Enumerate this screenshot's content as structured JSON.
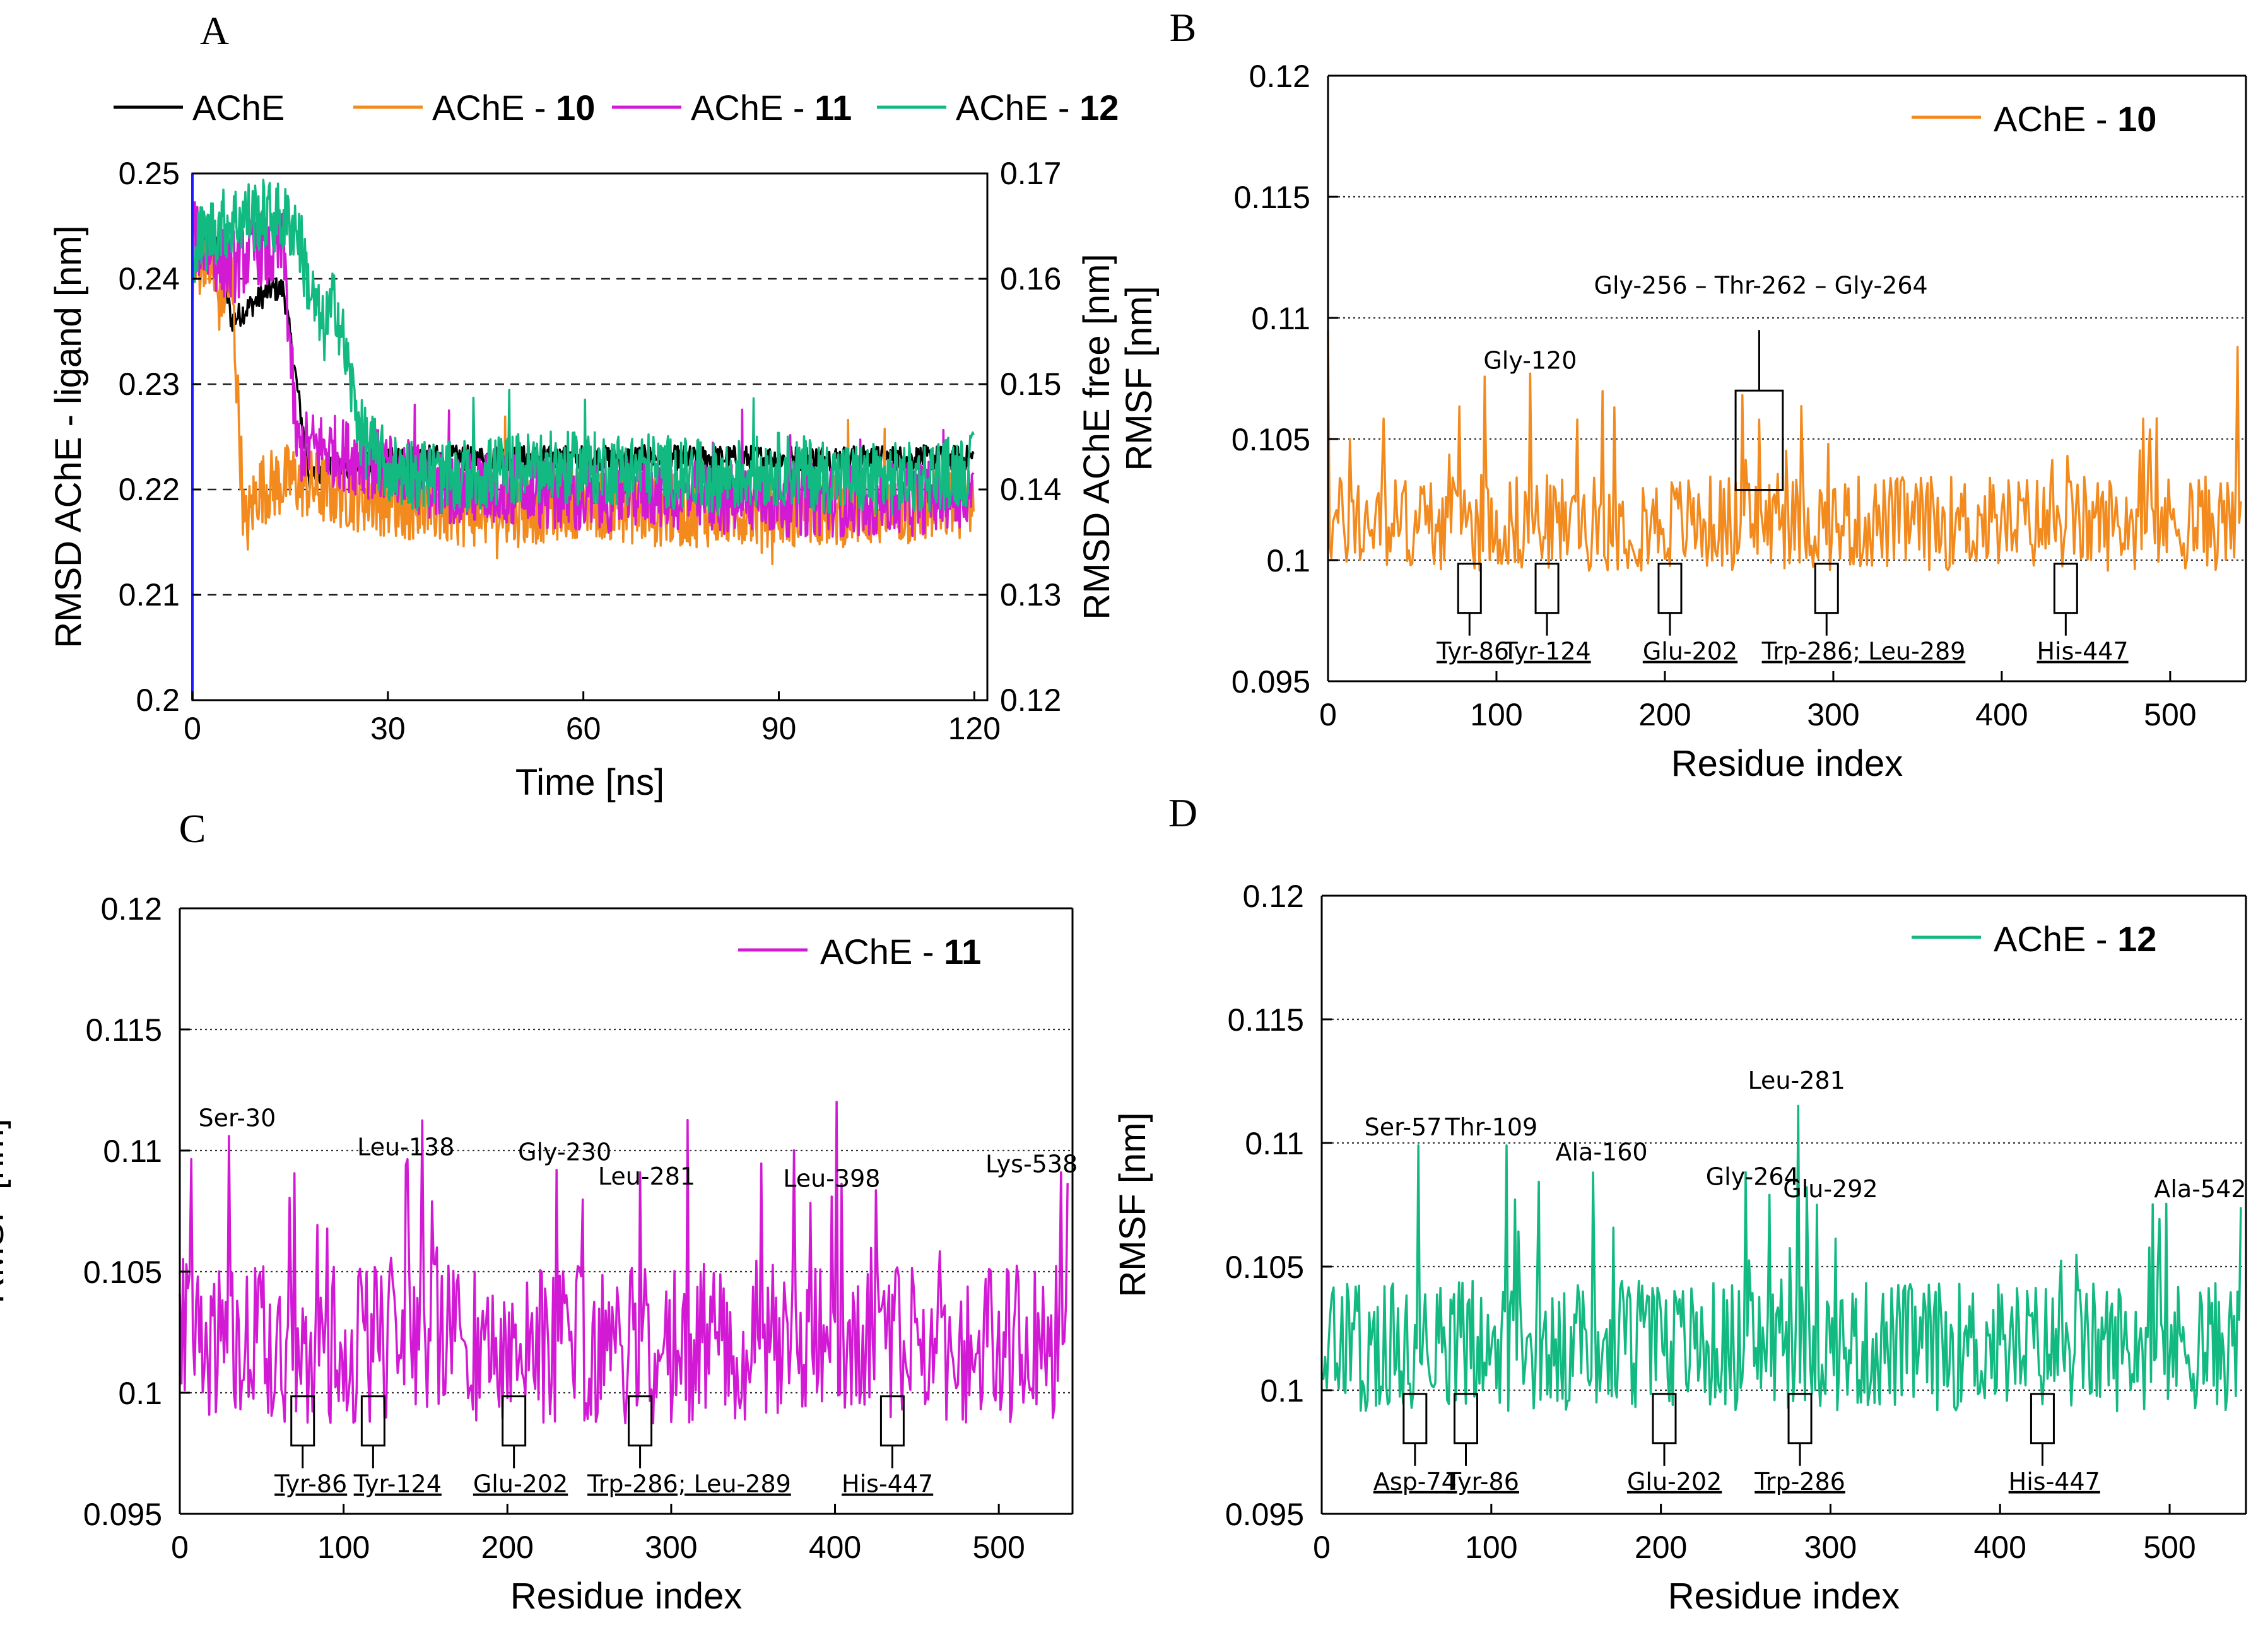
{
  "chart_data": [
    {
      "panel": "A",
      "type": "line",
      "xlabel": "Time [ns]",
      "ylabel_left": "RMSD AChE - ligand [nm]",
      "ylabel_right": "RMSD AChE free [nm]",
      "xlim": [
        0,
        122
      ],
      "ylim_left": [
        0.2,
        0.25
      ],
      "ylim_right": [
        0.12,
        0.17
      ],
      "xticks": [
        "0",
        "30",
        "60",
        "90",
        "120"
      ],
      "yticks_left": [
        "0.2",
        "0.21",
        "0.22",
        "0.23",
        "0.24",
        "0.25"
      ],
      "yticks_right": [
        "0.12",
        "0.13",
        "0.14",
        "0.15",
        "0.16",
        "0.17"
      ],
      "grid": "dashed horizontal",
      "legend": [
        {
          "name": "AChE",
          "bold_part": "",
          "color": "#000000"
        },
        {
          "name": "AChE - ",
          "bold_part": "10",
          "color": "#f28a1e"
        },
        {
          "name": "AChE - ",
          "bold_part": "11",
          "color": "#d21ad4"
        },
        {
          "name": "AChE - ",
          "bold_part": "12",
          "color": "#12b981"
        }
      ],
      "series": [
        {
          "name": "AChE",
          "axis": "right",
          "color": "#000000",
          "x": [
            0,
            2,
            4,
            6,
            8,
            10,
            12,
            14,
            16,
            18,
            20,
            25,
            30,
            40,
            50,
            60,
            70,
            80,
            90,
            100,
            110,
            120
          ],
          "y": [
            0.165,
            0.164,
            0.163,
            0.156,
            0.157,
            0.158,
            0.159,
            0.159,
            0.15,
            0.141,
            0.142,
            0.142,
            0.143,
            0.143,
            0.143,
            0.143,
            0.143,
            0.143,
            0.143,
            0.143,
            0.143,
            0.143
          ]
        },
        {
          "name": "AChE - 10",
          "axis": "left",
          "color": "#f28a1e",
          "x": [
            0,
            2,
            4,
            6,
            8,
            10,
            15,
            20,
            30,
            40,
            50,
            60,
            70,
            80,
            90,
            100,
            110,
            120
          ],
          "y": [
            0.24,
            0.243,
            0.238,
            0.24,
            0.216,
            0.22,
            0.221,
            0.22,
            0.219,
            0.218,
            0.218,
            0.219,
            0.218,
            0.218,
            0.218,
            0.218,
            0.218,
            0.219
          ]
        },
        {
          "name": "AChE - 11",
          "axis": "left",
          "color": "#d21ad4",
          "x": [
            0,
            2,
            4,
            6,
            8,
            10,
            12,
            14,
            16,
            20,
            30,
            40,
            50,
            60,
            70,
            80,
            90,
            100,
            110,
            120
          ],
          "y": [
            0.244,
            0.243,
            0.242,
            0.241,
            0.242,
            0.243,
            0.242,
            0.243,
            0.224,
            0.224,
            0.222,
            0.22,
            0.22,
            0.219,
            0.22,
            0.219,
            0.219,
            0.219,
            0.219,
            0.22
          ]
        },
        {
          "name": "AChE - 12",
          "axis": "left",
          "color": "#12b981",
          "x": [
            0,
            4,
            8,
            12,
            16,
            18,
            20,
            22,
            24,
            26,
            30,
            40,
            50,
            60,
            70,
            80,
            90,
            100,
            110,
            120
          ],
          "y": [
            0.243,
            0.245,
            0.246,
            0.246,
            0.245,
            0.239,
            0.235,
            0.238,
            0.231,
            0.225,
            0.222,
            0.221,
            0.222,
            0.222,
            0.222,
            0.221,
            0.222,
            0.221,
            0.221,
            0.222
          ]
        }
      ]
    },
    {
      "panel": "B",
      "type": "line",
      "xlabel": "Residue index",
      "ylabel": "RMSF [nm]",
      "xlim": [
        0,
        545
      ],
      "ylim": [
        0.095,
        0.12
      ],
      "xticks": [
        "0",
        "100",
        "200",
        "300",
        "400",
        "500"
      ],
      "yticks": [
        "0.095",
        "0.1",
        "0.105",
        "0.11",
        "0.115",
        "0.12"
      ],
      "grid": "dotted horizontal",
      "legend": {
        "name": "AChE - ",
        "bold_part": "10",
        "color": "#f28a1e",
        "position": "top-right"
      },
      "peaks": [
        [
          0,
          0.1095
        ],
        [
          120,
          0.1077
        ],
        [
          256,
          0.1058
        ],
        [
          540,
          0.1088
        ]
      ],
      "top_labels": [
        "Gly-120",
        "Gly-256 – Thr-262 – Gly-264"
      ],
      "bottom_labels": [
        "Tyr-86",
        "Tyr-124",
        "Glu-202",
        "Trp-286; Leu-289",
        "His-447"
      ],
      "highlighted_residues": [
        86,
        124,
        202,
        286,
        447
      ]
    },
    {
      "panel": "C",
      "type": "line",
      "xlabel": "Residue index",
      "ylabel": "RMSF [nm]",
      "xlim": [
        0,
        545
      ],
      "ylim": [
        0.095,
        0.12
      ],
      "xticks": [
        "0",
        "100",
        "200",
        "300",
        "400",
        "500"
      ],
      "yticks": [
        "0.095",
        "0.1",
        "0.105",
        "0.11",
        "0.115",
        "0.12"
      ],
      "grid": "dotted horizontal",
      "legend": {
        "name": "AChE - ",
        "bold_part": "11",
        "color": "#d21ad4",
        "position": "top-right"
      },
      "peaks": [
        [
          30,
          0.1106
        ],
        [
          138,
          0.1094
        ],
        [
          230,
          0.1092
        ],
        [
          281,
          0.1091
        ],
        [
          398,
          0.1081
        ],
        [
          538,
          0.1091
        ]
      ],
      "top_labels": [
        "Ser-30",
        "Leu-138",
        "Gly-230",
        "Leu-281",
        "Leu-398",
        "Lys-538"
      ],
      "bottom_labels": [
        "Tyr-86",
        "Tyr-124",
        "Glu-202",
        "Trp-286; Leu-289",
        "His-447"
      ],
      "highlighted_residues": [
        86,
        124,
        202,
        286,
        447
      ]
    },
    {
      "panel": "D",
      "type": "line",
      "xlabel": "Residue index",
      "ylabel": "RMSF [nm]",
      "xlim": [
        0,
        545
      ],
      "ylim": [
        0.095,
        0.12
      ],
      "xticks": [
        "0",
        "100",
        "200",
        "300",
        "400",
        "500"
      ],
      "yticks": [
        "0.095",
        "0.1",
        "0.105",
        "0.11",
        "0.115",
        "0.12"
      ],
      "grid": "dotted horizontal",
      "legend": {
        "name": "AChE - ",
        "bold_part": "12",
        "color": "#12b981",
        "position": "top-right"
      },
      "peaks": [
        [
          57,
          0.1099
        ],
        [
          109,
          0.1099
        ],
        [
          160,
          0.1088
        ],
        [
          264,
          0.1079
        ],
        [
          281,
          0.1115
        ],
        [
          292,
          0.1075
        ],
        [
          542,
          0.1074
        ]
      ],
      "top_labels": [
        "Ser-57",
        "Thr-109",
        "Ala-160",
        "Gly-264",
        "Leu-281",
        "Glu-292",
        "Ala-542"
      ],
      "bottom_labels": [
        "Asp-74",
        "Tyr-86",
        "Glu-202",
        "Trp-286",
        "His-447"
      ],
      "highlighted_residues": [
        74,
        86,
        202,
        286,
        447
      ]
    }
  ]
}
